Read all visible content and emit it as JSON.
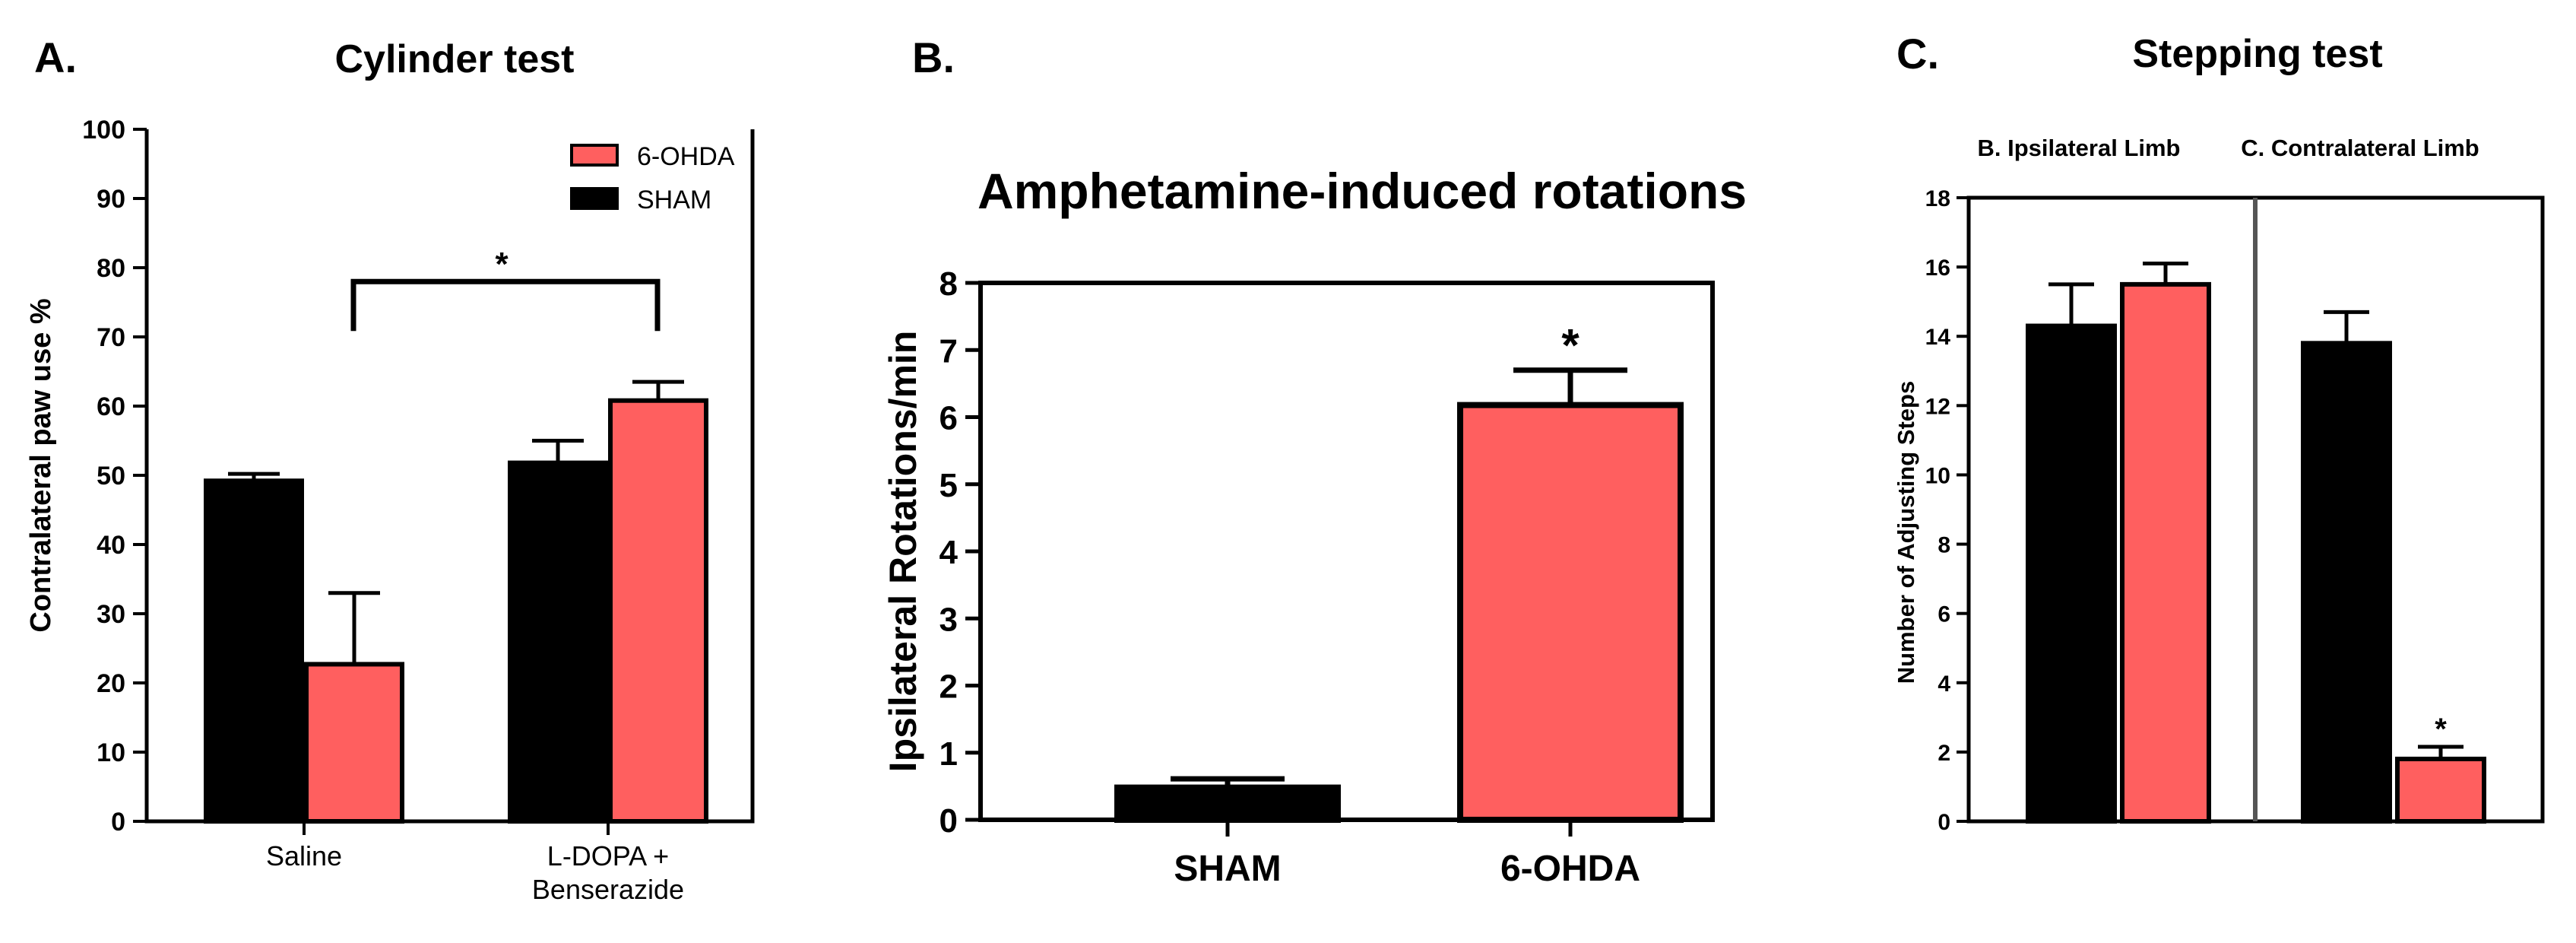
{
  "colors": {
    "sham": "#000000",
    "ohda": "#ff5f5f",
    "divider": "#555555"
  },
  "panels": {
    "A": {
      "letter": "A.",
      "title": "Cylinder test"
    },
    "B": {
      "letter": "B.",
      "title": "Amphetamine-induced rotations"
    },
    "C": {
      "letter": "C.",
      "title": "Stepping test",
      "sub_left": "B. Ipsilateral Limb",
      "sub_right": "C. Contralateral Limb"
    }
  },
  "chart_data": [
    {
      "type": "bar",
      "title": "Cylinder test",
      "ylabel": "Contralateral paw use %",
      "ylim": [
        0,
        100
      ],
      "yticks": [
        0,
        10,
        20,
        30,
        40,
        50,
        60,
        70,
        80,
        90,
        100
      ],
      "categories": [
        "Saline",
        "L-DOPA + Benserazide"
      ],
      "category_lines": [
        [
          "Saline"
        ],
        [
          "L-DOPA +",
          "Benserazide"
        ]
      ],
      "series": [
        {
          "name": "SHAM",
          "values": [
            49.2,
            51.8
          ],
          "errors": [
            1.0,
            3.2
          ]
        },
        {
          "name": "6-OHDA",
          "values": [
            22.7,
            60.8
          ],
          "errors": [
            10.3,
            2.7
          ]
        }
      ],
      "legend": {
        "position": "top-right",
        "order": [
          "6-OHDA",
          "SHAM"
        ]
      },
      "annotations": [
        {
          "text": "*",
          "between": [
            "Saline",
            "L-DOPA + Benserazide"
          ],
          "y": 78
        }
      ],
      "grid": false
    },
    {
      "type": "bar",
      "title": "Amphetamine-induced rotations",
      "ylabel": "Ipsilateral Rotations/min",
      "ylim": [
        0,
        8
      ],
      "yticks": [
        0,
        1,
        2,
        3,
        4,
        5,
        6,
        7,
        8
      ],
      "categories": [
        "SHAM",
        "6-OHDA"
      ],
      "values": [
        0.48,
        6.18
      ],
      "errors": [
        0.13,
        0.52
      ],
      "annotations": [
        {
          "text": "*",
          "category": "6-OHDA"
        }
      ],
      "grid": false
    },
    {
      "type": "bar",
      "title": "Stepping test",
      "ylabel": "Number of Adjusting Steps",
      "ylim": [
        0,
        18
      ],
      "yticks": [
        0,
        2,
        4,
        6,
        8,
        10,
        12,
        14,
        16,
        18
      ],
      "categories": [
        "B. Ipsilateral Limb",
        "C. Contralateral Limb"
      ],
      "series": [
        {
          "name": "SHAM",
          "values": [
            14.3,
            13.8
          ],
          "errors": [
            1.2,
            0.9
          ]
        },
        {
          "name": "6-OHDA",
          "values": [
            15.5,
            1.8
          ],
          "errors": [
            0.6,
            0.35
          ]
        }
      ],
      "annotations": [
        {
          "text": "*",
          "category": "C. Contralateral Limb",
          "series": "6-OHDA"
        }
      ],
      "grid": false
    }
  ]
}
